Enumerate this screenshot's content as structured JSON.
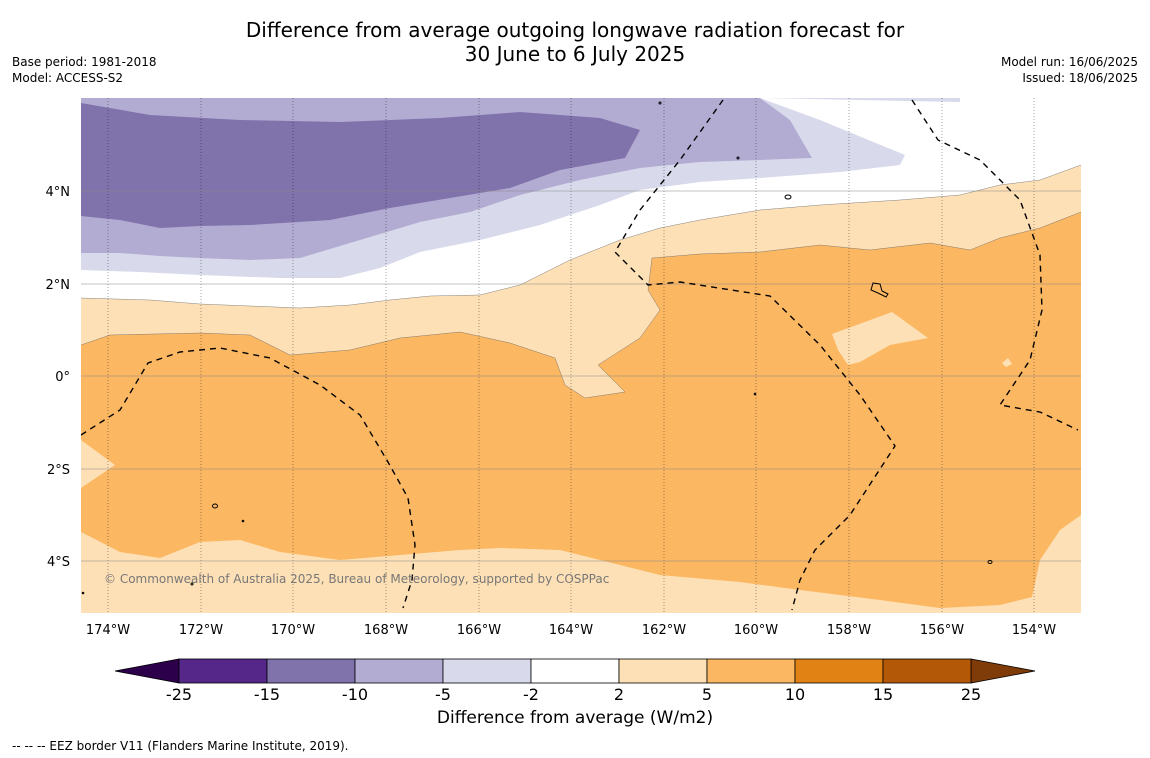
{
  "title": {
    "line1": "Difference from average outgoing longwave radiation forecast for",
    "line2": "30 June to 6 July 2025"
  },
  "meta_left": {
    "base_period": "Base period: 1981-2018",
    "model": "Model: ACCESS-S2"
  },
  "meta_right": {
    "model_run": "Model run: 16/06/2025",
    "issued": "Issued: 18/06/2025"
  },
  "map": {
    "lon_labels": [
      "174°W",
      "172°W",
      "170°W",
      "168°W",
      "166°W",
      "164°W",
      "162°W",
      "160°W",
      "158°W",
      "156°W",
      "154°W"
    ],
    "lat_labels": [
      "4°N",
      "2°N",
      "0°",
      "2°S",
      "4°S"
    ],
    "copyright": "© Commonwealth of Australia 2025, Bureau of Meteorology, supported by COSPPac",
    "colors": {
      "neg15_10": "#8073ac",
      "neg10_5": "#b2abd2",
      "neg5_2": "#d8daeb",
      "neutral": "#ffffff",
      "pos2_5": "#fee0b6",
      "pos5_10": "#fbb761"
    }
  },
  "colorbar": {
    "ticks": [
      "-25",
      "-15",
      "-10",
      "-5",
      "-2",
      "2",
      "5",
      "10",
      "15",
      "25"
    ],
    "colors": [
      "#542788",
      "#8073ac",
      "#b2abd2",
      "#d8daeb",
      "#ffffff",
      "#fee0b6",
      "#fbb761",
      "#e08214",
      "#b35806"
    ],
    "under_color": "#2d004b",
    "over_color": "#7f3b08",
    "label": "Difference from average (W/m2)"
  },
  "footnote": "--  --  -- EEZ border V11 (Flanders Marine Institute, 2019)."
}
